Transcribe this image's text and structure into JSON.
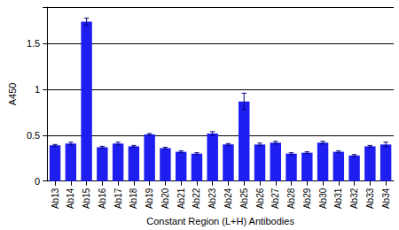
{
  "chart_data": {
    "type": "bar",
    "x_label": "Constant Region (L+H) Antibodies",
    "y_label": "A450",
    "categories": [
      "Ab13",
      "Ab14",
      "Ab15",
      "Ab16",
      "Ab17",
      "Ab18",
      "Ab19",
      "Ab20",
      "Ab21",
      "Ab22",
      "Ab23",
      "Ab24",
      "Ab25",
      "Ab26",
      "Ab27",
      "Ab28",
      "Ab29",
      "Ab30",
      "Ab31",
      "Ab32",
      "Ab33",
      "Ab34"
    ],
    "values": [
      0.39,
      0.41,
      1.74,
      0.37,
      0.41,
      0.38,
      0.51,
      0.36,
      0.32,
      0.3,
      0.52,
      0.4,
      0.87,
      0.4,
      0.42,
      0.3,
      0.31,
      0.42,
      0.32,
      0.28,
      0.38,
      0.4
    ],
    "errors": [
      0.01,
      0.015,
      0.04,
      0.01,
      0.015,
      0.01,
      0.01,
      0.01,
      0.01,
      0.01,
      0.02,
      0.01,
      0.09,
      0.015,
      0.015,
      0.01,
      0.01,
      0.015,
      0.01,
      0.01,
      0.01,
      0.025
    ],
    "color": "#1e1ef0",
    "ylim": [
      0,
      1.9
    ],
    "yticks": [
      0,
      0.5,
      1,
      1.5
    ],
    "grid": true
  }
}
